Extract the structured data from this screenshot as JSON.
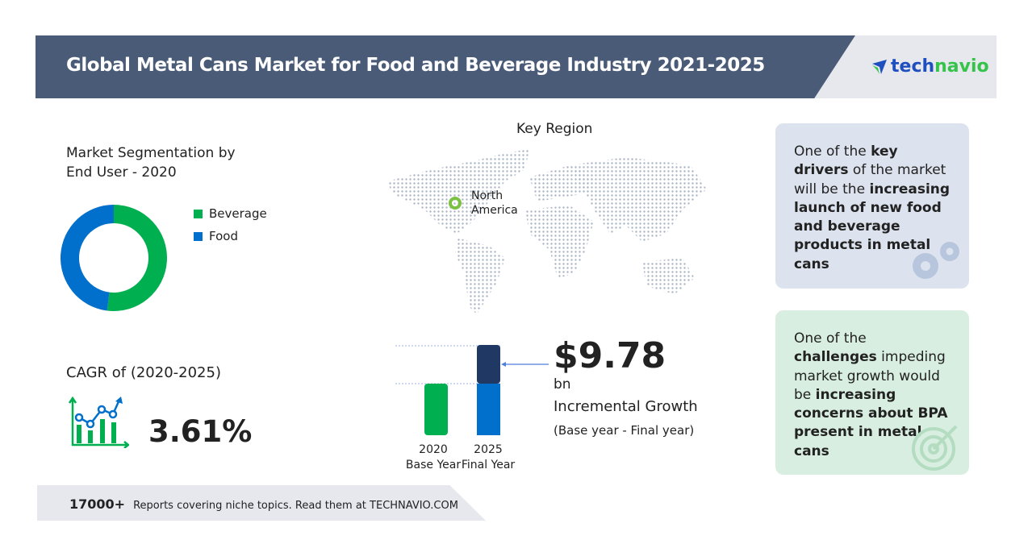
{
  "header": {
    "title": "Global Metal Cans Market for Food and Beverage Industry 2021-2025",
    "logo": {
      "part1": "tech",
      "part2": "navio"
    }
  },
  "segmentation": {
    "title_line1": "Market Segmentation by",
    "title_line2": "End User - 2020"
  },
  "cagr": {
    "label": "CAGR of (2020-2025)",
    "value": "3.61%"
  },
  "key_region": {
    "label": "Key Region",
    "region_line1": "North",
    "region_line2": "America"
  },
  "incremental": {
    "value": "$9.78",
    "unit": "bn",
    "label": "Incremental Growth",
    "sub": "(Base year - Final year)"
  },
  "bars": {
    "b2020": {
      "year": "2020",
      "label": "Base Year"
    },
    "b2025": {
      "year": "2025",
      "label": "Final Year"
    }
  },
  "drivers": {
    "t1": "One of the ",
    "b1": "key drivers",
    "t2": " of the market will be the ",
    "b2": "increasing launch of new food and beverage products in metal cans"
  },
  "challenges": {
    "t1": "One of the ",
    "b1": "challenges",
    "t2": " impeding market growth would be ",
    "b2": "increasing concerns about BPA present in metal cans"
  },
  "footer": {
    "count": "17000+",
    "text": "Reports covering niche topics. Read them at TECHNAVIO.COM"
  },
  "colors": {
    "beverage": "#00b050",
    "food": "#0070cc",
    "incremental": "#1f3864",
    "header": "#4a5b78"
  },
  "chart_data": [
    {
      "type": "pie",
      "title": "Market Segmentation by End User - 2020",
      "categories": [
        "Beverage",
        "Food"
      ],
      "values": [
        52,
        48
      ],
      "donut": true,
      "legend": "right"
    },
    {
      "type": "bar",
      "categories": [
        "2020 Base Year",
        "2025 Final Year"
      ],
      "series": [
        {
          "name": "Base",
          "values": [
            1,
            1
          ]
        },
        {
          "name": "Incremental Growth",
          "values": [
            0,
            0.6
          ]
        }
      ],
      "annotation": "$9.78 bn Incremental Growth"
    }
  ]
}
